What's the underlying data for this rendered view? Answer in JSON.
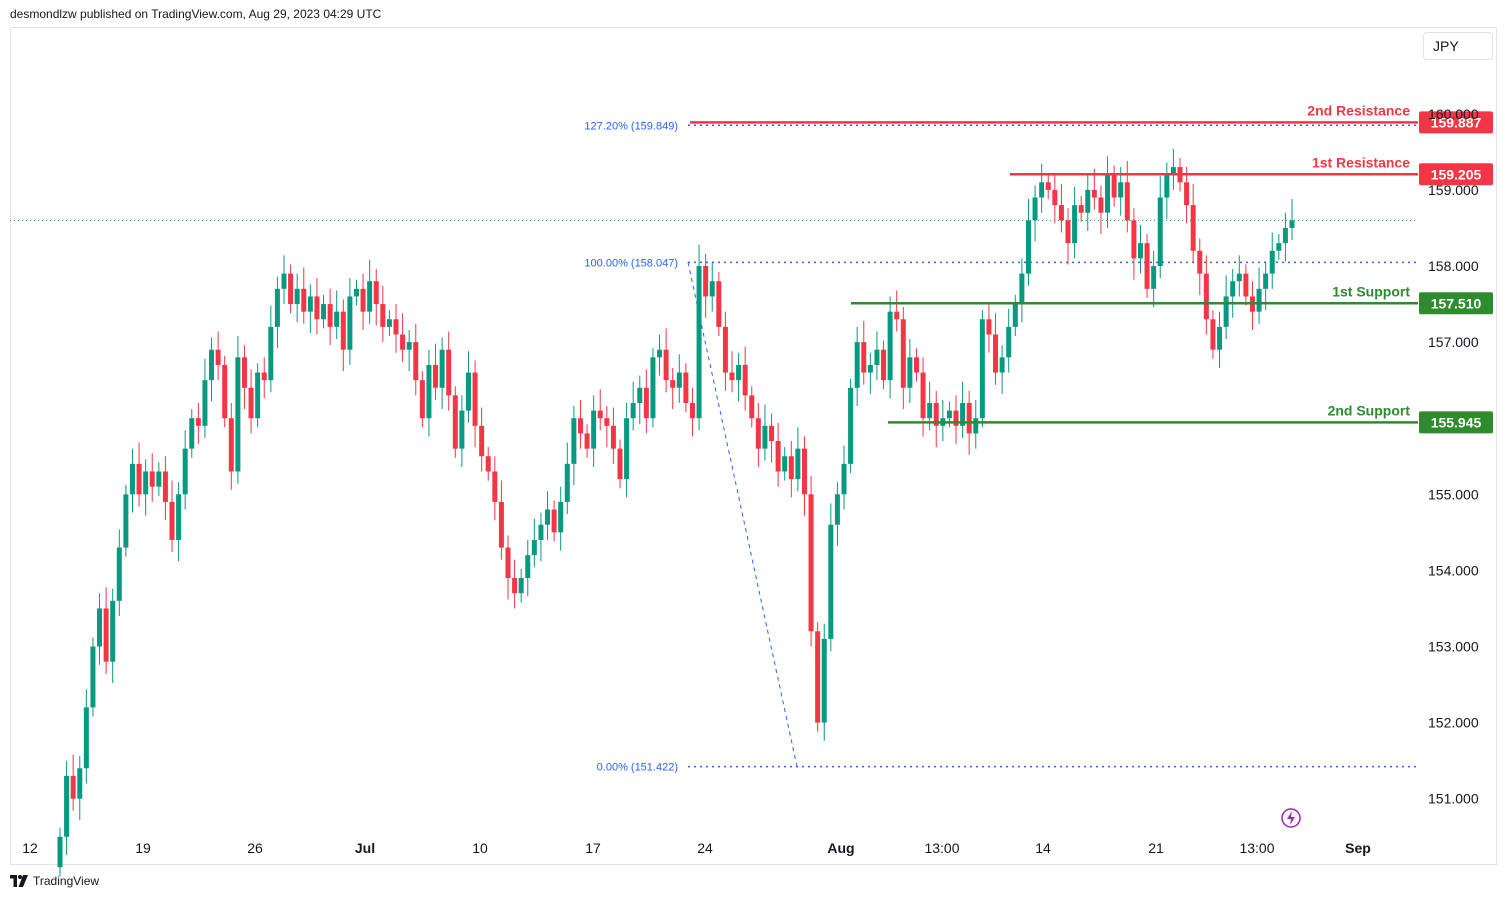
{
  "header": {
    "published": "desmondlzw published on TradingView.com, Aug 29, 2023 04:29 UTC"
  },
  "currency": "JPY",
  "footer": {
    "brand": "TradingView"
  },
  "colors": {
    "up": "#089981",
    "down": "#f23645",
    "resistance": "#f23645",
    "support": "#2e8b2e",
    "fib": "#2962ff"
  },
  "chart_data": {
    "type": "candlestick",
    "y_axis": {
      "ticks": [
        "160.000",
        "159.000",
        "158.000",
        "157.000",
        "155.000",
        "154.000",
        "153.000",
        "152.000",
        "151.000"
      ],
      "range": [
        150.6,
        160.5
      ]
    },
    "x_axis": {
      "ticks": [
        "12",
        "19",
        "26",
        "Jul",
        "10",
        "17",
        "24",
        "Aug",
        "13:00",
        "14",
        "21",
        "13:00",
        "Sep"
      ]
    },
    "levels": [
      {
        "label": "2nd Resistance",
        "value": "159.887",
        "kind": "resistance"
      },
      {
        "label": "1st Resistance",
        "value": "159.205",
        "kind": "resistance"
      },
      {
        "label": "1st Support",
        "value": "157.510",
        "kind": "support"
      },
      {
        "label": "2nd Support",
        "value": "155.945",
        "kind": "support"
      }
    ],
    "fibonacci": [
      {
        "label": "127.20% (159.849)",
        "price": 159.849
      },
      {
        "label": "100.00% (158.047)",
        "price": 158.047
      },
      {
        "label": "0.00% (151.422)",
        "price": 151.422
      }
    ],
    "last_price": 158.6,
    "candles_close": [
      150.5,
      151.3,
      151.0,
      151.4,
      152.2,
      153.0,
      153.5,
      152.8,
      153.6,
      154.3,
      155.0,
      155.4,
      155.0,
      155.3,
      155.1,
      155.3,
      154.9,
      154.4,
      155.0,
      155.6,
      156.0,
      155.9,
      156.5,
      156.9,
      156.7,
      156.0,
      155.3,
      156.8,
      156.4,
      156.0,
      156.6,
      156.5,
      157.2,
      157.7,
      157.9,
      157.5,
      157.7,
      157.4,
      157.6,
      157.3,
      157.5,
      157.2,
      157.4,
      156.9,
      157.6,
      157.7,
      157.4,
      157.8,
      157.5,
      157.2,
      157.3,
      157.1,
      156.9,
      157.0,
      156.5,
      156.0,
      156.7,
      156.4,
      156.9,
      156.3,
      155.6,
      156.1,
      156.6,
      155.9,
      155.5,
      155.3,
      154.9,
      154.3,
      153.9,
      153.7,
      153.9,
      154.2,
      154.4,
      154.6,
      154.8,
      154.5,
      154.9,
      155.4,
      156.0,
      155.8,
      155.6,
      156.1,
      156.0,
      155.9,
      155.6,
      155.2,
      156.0,
      156.2,
      156.4,
      156.0,
      156.8,
      156.9,
      156.5,
      156.4,
      156.6,
      156.2,
      156.0,
      158.0,
      157.6,
      157.8,
      157.2,
      156.6,
      156.5,
      156.7,
      156.3,
      156.0,
      155.6,
      155.9,
      155.7,
      155.3,
      155.5,
      155.2,
      155.6,
      155.0,
      153.2,
      152.0,
      153.1,
      154.6,
      155.0,
      155.4,
      156.4,
      157.0,
      156.6,
      156.7,
      156.9,
      156.5,
      157.4,
      157.3,
      156.4,
      156.8,
      156.6,
      156.0,
      156.2,
      155.9,
      156.0,
      156.1,
      155.9,
      156.2,
      155.8,
      156.0,
      157.3,
      157.1,
      156.6,
      156.8,
      157.2,
      157.5,
      157.9,
      158.6,
      158.9,
      159.1,
      159.0,
      158.8,
      158.6,
      158.3,
      158.8,
      158.7,
      159.0,
      158.9,
      158.7,
      159.2,
      158.9,
      159.1,
      158.6,
      158.1,
      158.3,
      157.7,
      158.0,
      158.9,
      159.2,
      159.3,
      159.1,
      158.8,
      158.2,
      157.9,
      157.3,
      156.9,
      157.2,
      157.6,
      157.8,
      157.9,
      157.6,
      157.4,
      157.7,
      157.9,
      158.2,
      158.3,
      158.5,
      158.6
    ]
  }
}
